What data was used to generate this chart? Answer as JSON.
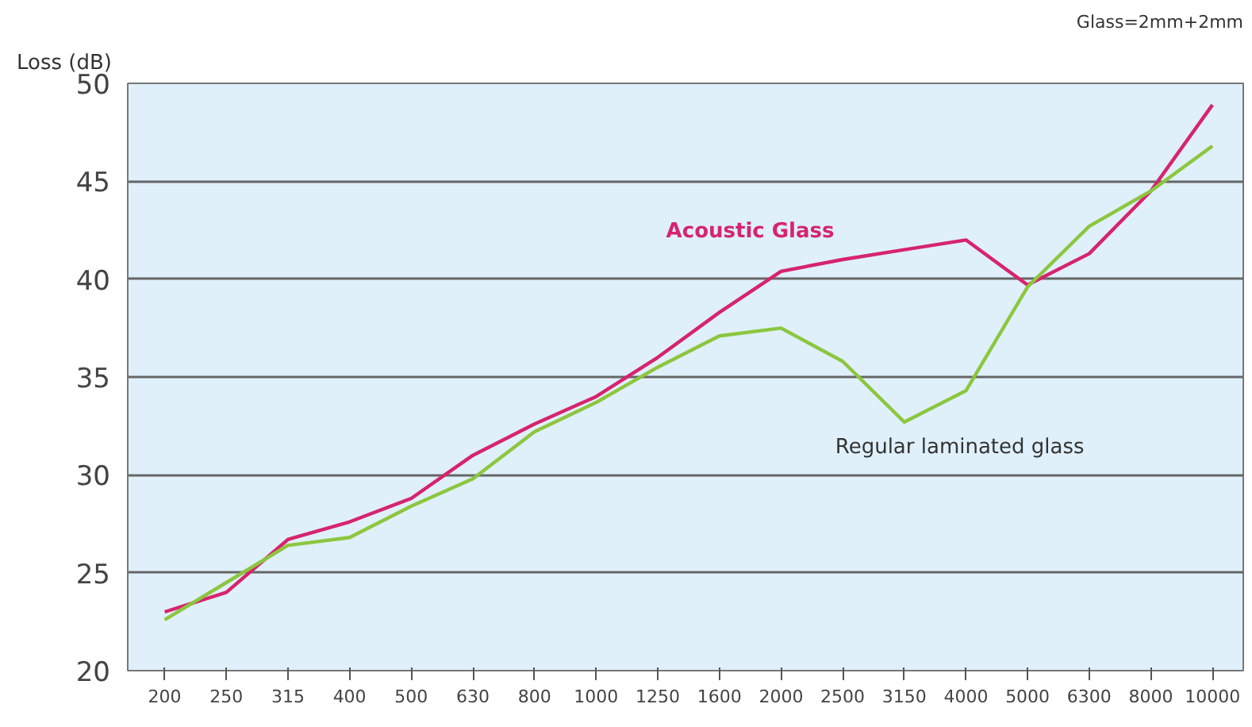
{
  "chart_data": {
    "type": "line",
    "ylabel": "Loss (dB)",
    "annotations": [
      "Glass=2mm+2mm"
    ],
    "categories": [
      "200",
      "250",
      "315",
      "400",
      "500",
      "630",
      "800",
      "1000",
      "1250",
      "1600",
      "2000",
      "2500",
      "3150",
      "4000",
      "5000",
      "6300",
      "8000",
      "10000"
    ],
    "series": [
      {
        "name": "Acoustic Glass",
        "color": "#d6246e",
        "values": [
          23.0,
          24.0,
          26.7,
          27.6,
          28.8,
          31.0,
          32.6,
          34.0,
          36.0,
          38.3,
          40.4,
          41.0,
          41.5,
          42.0,
          39.7,
          41.3,
          44.5,
          48.9
        ]
      },
      {
        "name": "Regular laminated glass",
        "color": "#8cc63f",
        "values": [
          22.6,
          24.5,
          26.4,
          26.8,
          28.4,
          29.8,
          32.2,
          33.7,
          35.5,
          37.1,
          37.5,
          35.8,
          32.7,
          34.3,
          39.6,
          42.7,
          44.5,
          46.8
        ]
      }
    ],
    "ylim": [
      20,
      50
    ],
    "yticks": [
      20,
      25,
      30,
      35,
      40,
      45,
      50
    ],
    "grid": "y",
    "legend": false,
    "marker": "none",
    "line_style": "solid"
  }
}
